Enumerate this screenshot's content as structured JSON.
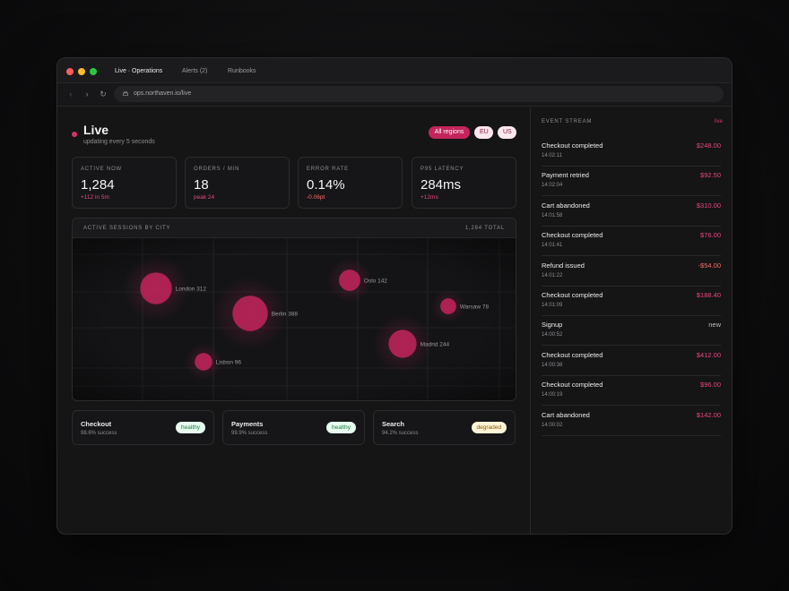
{
  "browser": {
    "tabs": [
      {
        "label": "Live · Operations"
      },
      {
        "label": "Alerts (2)"
      },
      {
        "label": "Runbooks"
      }
    ],
    "url": "ops.northaven.io/live"
  },
  "header": {
    "title": "Live",
    "subtitle": "updating every 5 seconds",
    "regions": [
      "All regions",
      "EU",
      "US"
    ],
    "selected_region": "All regions"
  },
  "stats": [
    {
      "label": "ACTIVE NOW",
      "value": "1,284",
      "delta": "+112 in 5m"
    },
    {
      "label": "ORDERS / MIN",
      "value": "18",
      "delta": "peak 24"
    },
    {
      "label": "ERROR RATE",
      "value": "0.14%",
      "delta": "-0.06pt"
    },
    {
      "label": "P95 LATENCY",
      "value": "284ms",
      "delta": "+12ms"
    }
  ],
  "map": {
    "title": "ACTIVE SESSIONS BY CITY",
    "total": "1,284 TOTAL",
    "bubble_color": "#c2255c",
    "cities": [
      {
        "name": "London",
        "sessions": 312,
        "label": "London 312"
      },
      {
        "name": "Berlin",
        "sessions": 388,
        "label": "Berlin 388"
      },
      {
        "name": "Oslo",
        "sessions": 142,
        "label": "Oslo 142"
      },
      {
        "name": "Warsaw",
        "sessions": 78,
        "label": "Warsaw 78"
      },
      {
        "name": "Madrid",
        "sessions": 244,
        "label": "Madrid 244"
      },
      {
        "name": "Lisbon",
        "sessions": 96,
        "label": "Lisbon 96"
      }
    ]
  },
  "services": [
    {
      "name": "Checkout",
      "rate": "98.6% success",
      "status": "healthy"
    },
    {
      "name": "Payments",
      "rate": "99.9% success",
      "status": "healthy"
    },
    {
      "name": "Search",
      "rate": "94.2% success",
      "status": "degraded"
    }
  ],
  "stream": {
    "title": "EVENT STREAM",
    "live_label": "live",
    "events": [
      {
        "name": "Checkout completed",
        "time": "14:02:11",
        "amount": "$248.00"
      },
      {
        "name": "Payment retried",
        "time": "14:02:04",
        "amount": "$92.50"
      },
      {
        "name": "Cart abandoned",
        "time": "14:01:58",
        "amount": "$310.00"
      },
      {
        "name": "Checkout completed",
        "time": "14:01:41",
        "amount": "$76.00"
      },
      {
        "name": "Refund issued",
        "time": "14:01:22",
        "amount": "-$54.00"
      },
      {
        "name": "Checkout completed",
        "time": "14:01:09",
        "amount": "$188.40"
      },
      {
        "name": "Signup",
        "time": "14:00:52",
        "amount": "new"
      },
      {
        "name": "Checkout completed",
        "time": "14:00:38",
        "amount": "$412.00"
      },
      {
        "name": "Checkout completed",
        "time": "14:00:19",
        "amount": "$96.00"
      },
      {
        "name": "Cart abandoned",
        "time": "14:00:02",
        "amount": "$142.00"
      }
    ]
  }
}
